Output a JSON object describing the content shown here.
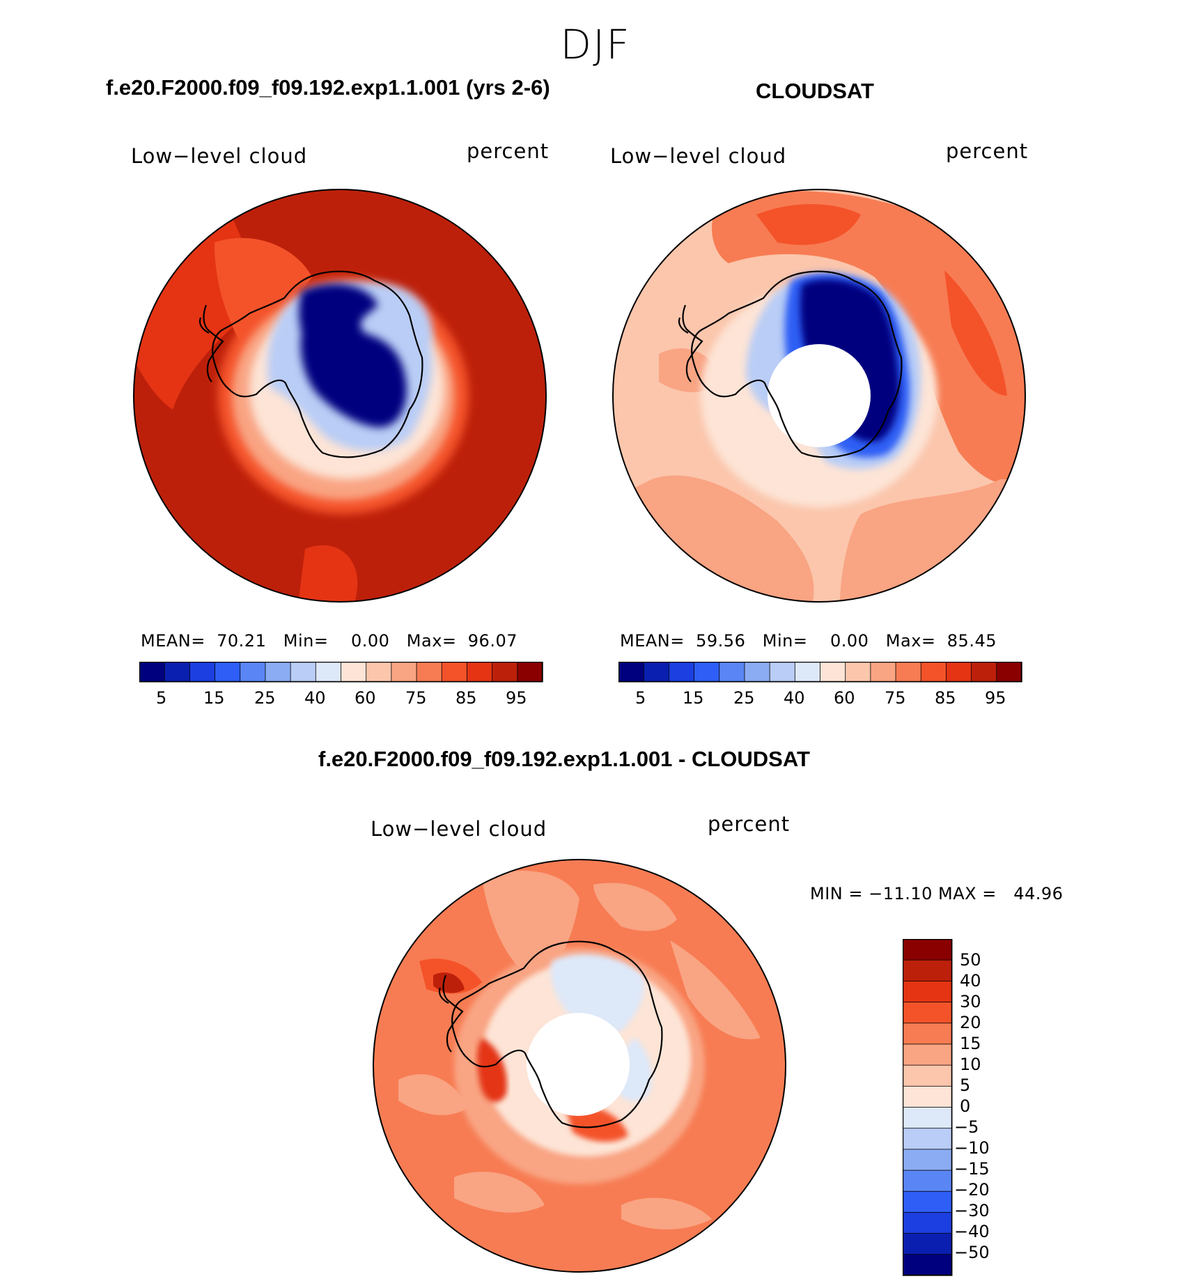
{
  "main_title": "DJF",
  "panels": [
    {
      "run_title": "f.e20.F2000.f09_f09.192.exp1.1.001 (yrs 2-6)",
      "variable": "Low−level cloud",
      "units": "percent",
      "mean_label": "MEAN=",
      "mean_value": "70.21",
      "min_label": "Min=",
      "min_value": "0.00",
      "max_label": "Max=",
      "max_value": "96.07",
      "colorbar_ticks": [
        "5",
        "15",
        "25",
        "40",
        "60",
        "75",
        "85",
        "95"
      ]
    },
    {
      "run_title": "CLOUDSAT",
      "variable": "Low−level cloud",
      "units": "percent",
      "mean_label": "MEAN=",
      "mean_value": "59.56",
      "min_label": "Min=",
      "min_value": "0.00",
      "max_label": "Max=",
      "max_value": "85.45",
      "colorbar_ticks": [
        "5",
        "15",
        "25",
        "40",
        "60",
        "75",
        "85",
        "95"
      ]
    }
  ],
  "difference": {
    "run_title": "f.e20.F2000.f09_f09.192.exp1.1.001 - CLOUDSAT",
    "variable": "Low−level cloud",
    "units": "percent",
    "minmax_text": "MIN = −11.10 MAX =   44.96",
    "colorbar_ticks": [
      "50",
      "40",
      "30",
      "20",
      "15",
      "10",
      "5",
      "0",
      "−5",
      "−10",
      "−15",
      "−20",
      "−30",
      "−40",
      "−50"
    ]
  },
  "colors": {
    "abs_scale": [
      "#00007f",
      "#0a1fb0",
      "#1b3fe0",
      "#2e5ef5",
      "#5a86f5",
      "#8bacf3",
      "#b9cdf6",
      "#dde8f9",
      "#fde4d6",
      "#fbc6ac",
      "#f9a483",
      "#f77c53",
      "#f4532a",
      "#e43414",
      "#bd200a",
      "#8a0000"
    ],
    "diff_scale": [
      "#8a0000",
      "#bd200a",
      "#e43414",
      "#f4532a",
      "#f77c53",
      "#f9a483",
      "#fbc6ac",
      "#fde4d6",
      "#dde8f9",
      "#b9cdf6",
      "#8bacf3",
      "#5a86f5",
      "#2e5ef5",
      "#1b3fe0",
      "#0a1fb0",
      "#00007f"
    ]
  }
}
